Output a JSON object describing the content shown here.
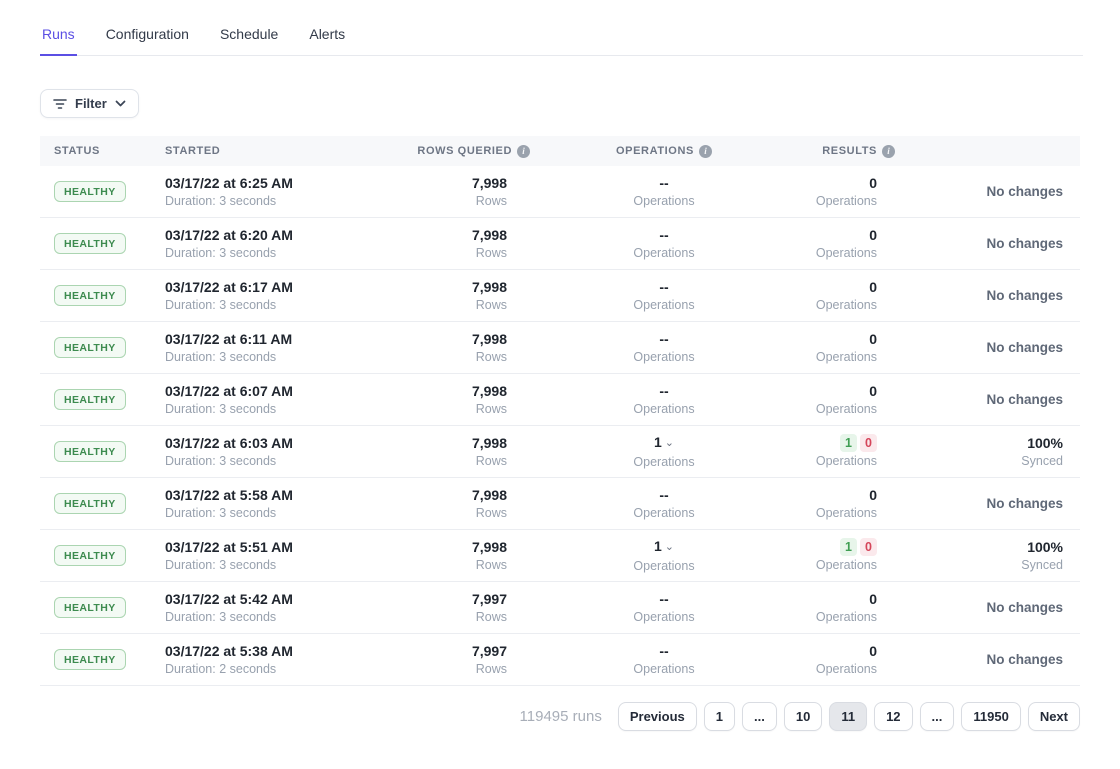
{
  "tabs": [
    {
      "label": "Runs",
      "active": true
    },
    {
      "label": "Configuration",
      "active": false
    },
    {
      "label": "Schedule",
      "active": false
    },
    {
      "label": "Alerts",
      "active": false
    }
  ],
  "filter": {
    "label": "Filter"
  },
  "table": {
    "headers": [
      {
        "key": "status",
        "label": "STATUS",
        "info": false
      },
      {
        "key": "started",
        "label": "STARTED",
        "info": false
      },
      {
        "key": "rows-queried",
        "label": "ROWS QUERIED",
        "info": true
      },
      {
        "key": "operations",
        "label": "OPERATIONS",
        "info": true
      },
      {
        "key": "results",
        "label": "RESULTS",
        "info": true
      }
    ],
    "sub_labels": {
      "rows": "Rows",
      "operations": "Operations",
      "results": "Operations"
    },
    "rows": [
      {
        "status": "HEALTHY",
        "started": "03/17/22 at 6:25 AM",
        "duration": "Duration: 3 seconds",
        "rows_queried": "7,998",
        "operations": {
          "value": "--",
          "expandable": false
        },
        "results": {
          "kind": "plain",
          "value": "0"
        },
        "outcome": {
          "kind": "none",
          "label": "No changes"
        }
      },
      {
        "status": "HEALTHY",
        "started": "03/17/22 at 6:20 AM",
        "duration": "Duration: 3 seconds",
        "rows_queried": "7,998",
        "operations": {
          "value": "--",
          "expandable": false
        },
        "results": {
          "kind": "plain",
          "value": "0"
        },
        "outcome": {
          "kind": "none",
          "label": "No changes"
        }
      },
      {
        "status": "HEALTHY",
        "started": "03/17/22 at 6:17 AM",
        "duration": "Duration: 3 seconds",
        "rows_queried": "7,998",
        "operations": {
          "value": "--",
          "expandable": false
        },
        "results": {
          "kind": "plain",
          "value": "0"
        },
        "outcome": {
          "kind": "none",
          "label": "No changes"
        }
      },
      {
        "status": "HEALTHY",
        "started": "03/17/22 at 6:11 AM",
        "duration": "Duration: 3 seconds",
        "rows_queried": "7,998",
        "operations": {
          "value": "--",
          "expandable": false
        },
        "results": {
          "kind": "plain",
          "value": "0"
        },
        "outcome": {
          "kind": "none",
          "label": "No changes"
        }
      },
      {
        "status": "HEALTHY",
        "started": "03/17/22 at 6:07 AM",
        "duration": "Duration: 3 seconds",
        "rows_queried": "7,998",
        "operations": {
          "value": "--",
          "expandable": false
        },
        "results": {
          "kind": "plain",
          "value": "0"
        },
        "outcome": {
          "kind": "none",
          "label": "No changes"
        }
      },
      {
        "status": "HEALTHY",
        "started": "03/17/22 at 6:03 AM",
        "duration": "Duration: 3 seconds",
        "rows_queried": "7,998",
        "operations": {
          "value": "1",
          "expandable": true
        },
        "results": {
          "kind": "chips",
          "ok": "1",
          "fail": "0"
        },
        "outcome": {
          "kind": "synced",
          "value": "100%",
          "label": "Synced"
        }
      },
      {
        "status": "HEALTHY",
        "started": "03/17/22 at 5:58 AM",
        "duration": "Duration: 3 seconds",
        "rows_queried": "7,998",
        "operations": {
          "value": "--",
          "expandable": false
        },
        "results": {
          "kind": "plain",
          "value": "0"
        },
        "outcome": {
          "kind": "none",
          "label": "No changes"
        }
      },
      {
        "status": "HEALTHY",
        "started": "03/17/22 at 5:51 AM",
        "duration": "Duration: 3 seconds",
        "rows_queried": "7,998",
        "operations": {
          "value": "1",
          "expandable": true
        },
        "results": {
          "kind": "chips",
          "ok": "1",
          "fail": "0"
        },
        "outcome": {
          "kind": "synced",
          "value": "100%",
          "label": "Synced"
        }
      },
      {
        "status": "HEALTHY",
        "started": "03/17/22 at 5:42 AM",
        "duration": "Duration: 3 seconds",
        "rows_queried": "7,997",
        "operations": {
          "value": "--",
          "expandable": false
        },
        "results": {
          "kind": "plain",
          "value": "0"
        },
        "outcome": {
          "kind": "none",
          "label": "No changes"
        }
      },
      {
        "status": "HEALTHY",
        "started": "03/17/22 at 5:38 AM",
        "duration": "Duration: 2 seconds",
        "rows_queried": "7,997",
        "operations": {
          "value": "--",
          "expandable": false
        },
        "results": {
          "kind": "plain",
          "value": "0"
        },
        "outcome": {
          "kind": "none",
          "label": "No changes"
        }
      }
    ]
  },
  "pagination": {
    "count_label": "119495 runs",
    "items": [
      {
        "label": "Previous",
        "active": false
      },
      {
        "label": "1",
        "active": false
      },
      {
        "label": "...",
        "active": false
      },
      {
        "label": "10",
        "active": false
      },
      {
        "label": "11",
        "active": true
      },
      {
        "label": "12",
        "active": false
      },
      {
        "label": "...",
        "active": false
      },
      {
        "label": "11950",
        "active": false
      },
      {
        "label": "Next",
        "active": false
      }
    ]
  },
  "colors": {
    "accent": "#5b4fe4",
    "healthy_text": "#3d8b4f",
    "healthy_bg": "#f3faf4",
    "healthy_border": "#abd5b1",
    "chip_ok_text": "#3f9e53",
    "chip_ok_bg": "#e7f5ea",
    "chip_fail_text": "#d5455a",
    "chip_fail_bg": "#fbe9ec",
    "header_bg": "#f7f8fa"
  }
}
